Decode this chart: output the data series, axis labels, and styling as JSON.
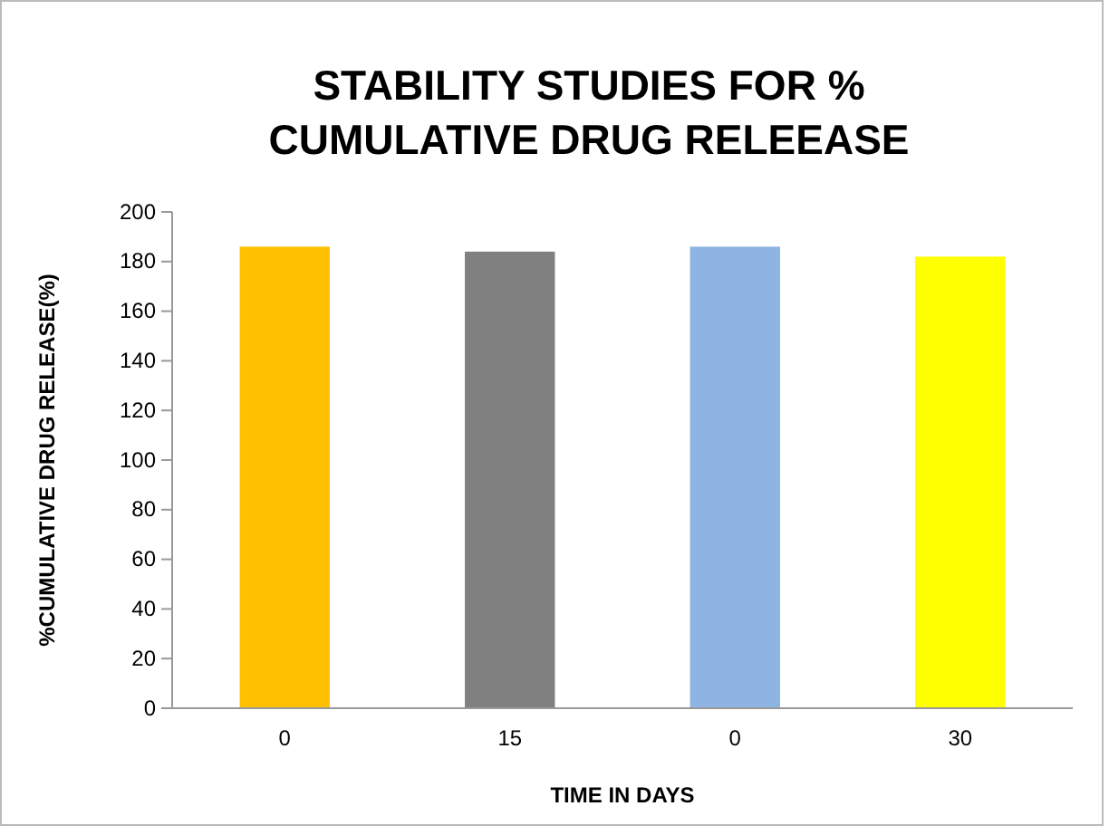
{
  "chart_data": {
    "type": "bar",
    "title": "STABILITY STUDIES FOR % CUMULATIVE DRUG RELEEASE",
    "xlabel": "TIME IN DAYS",
    "ylabel": "%CUMULATIVE DRUG RELEASE(%)",
    "categories": [
      "0",
      "15",
      "0",
      "30"
    ],
    "values": [
      186,
      184,
      186,
      182
    ],
    "colors": [
      "#ffc000",
      "#808080",
      "#8eb4e3",
      "#ffff00"
    ],
    "ylim": [
      0,
      200
    ],
    "yticks": [
      0,
      20,
      40,
      60,
      80,
      100,
      120,
      140,
      160,
      180,
      200
    ],
    "grid": false
  }
}
